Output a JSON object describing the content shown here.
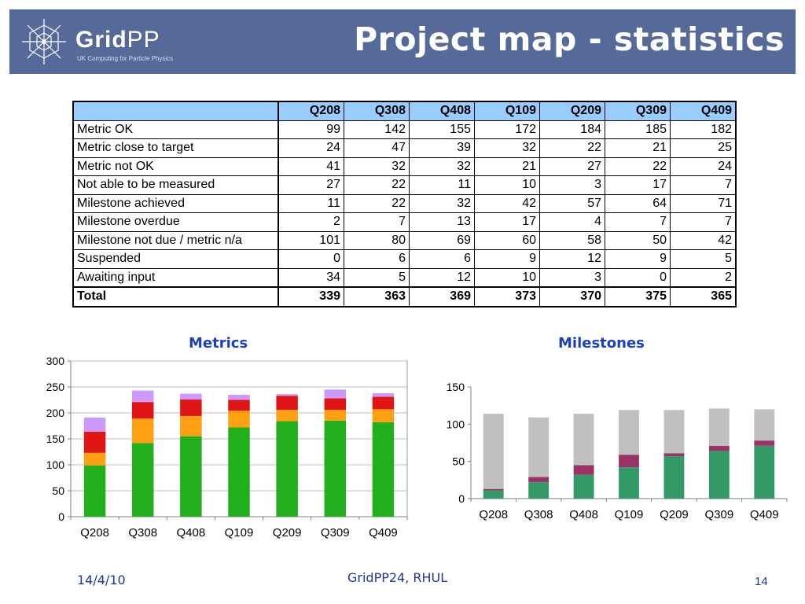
{
  "header": {
    "title": "Project map - statistics",
    "logo_name_main": "Grid",
    "logo_name_pp": "PP",
    "logo_tagline": "UK Computing for Particle Physics"
  },
  "table": {
    "columns": [
      "Q208",
      "Q308",
      "Q408",
      "Q109",
      "Q209",
      "Q309",
      "Q409"
    ],
    "rows": [
      {
        "label": "Metric OK",
        "values": [
          99,
          142,
          155,
          172,
          184,
          185,
          182
        ]
      },
      {
        "label": "Metric close to target",
        "values": [
          24,
          47,
          39,
          32,
          22,
          21,
          25
        ]
      },
      {
        "label": "Metric not OK",
        "values": [
          41,
          32,
          32,
          21,
          27,
          22,
          24
        ]
      },
      {
        "label": "Not able to be measured",
        "values": [
          27,
          22,
          11,
          10,
          3,
          17,
          7
        ]
      },
      {
        "label": "Milestone achieved",
        "values": [
          11,
          22,
          32,
          42,
          57,
          64,
          71
        ]
      },
      {
        "label": "Milestone overdue",
        "values": [
          2,
          7,
          13,
          17,
          4,
          7,
          7
        ]
      },
      {
        "label": "Milestone not due / metric n/a",
        "values": [
          101,
          80,
          69,
          60,
          58,
          50,
          42
        ]
      },
      {
        "label": "Suspended",
        "values": [
          0,
          6,
          6,
          9,
          12,
          9,
          5
        ]
      },
      {
        "label": "Awaiting input",
        "values": [
          34,
          5,
          12,
          10,
          3,
          0,
          2
        ]
      }
    ],
    "total": {
      "label": "Total",
      "values": [
        339,
        363,
        369,
        373,
        370,
        375,
        365
      ]
    }
  },
  "chart_data": [
    {
      "type": "bar",
      "stacked": true,
      "title": "Metrics",
      "categories": [
        "Q208",
        "Q308",
        "Q408",
        "Q109",
        "Q209",
        "Q309",
        "Q409"
      ],
      "ylim": [
        0,
        300
      ],
      "yticks": [
        0,
        50,
        100,
        150,
        200,
        250,
        300
      ],
      "grid": true,
      "series": [
        {
          "values": [
            99,
            142,
            155,
            172,
            184,
            185,
            182
          ],
          "color": "#22b01e"
        },
        {
          "values": [
            24,
            47,
            39,
            32,
            22,
            21,
            25
          ],
          "color": "#ff9f12"
        },
        {
          "values": [
            41,
            32,
            32,
            21,
            27,
            22,
            24
          ],
          "color": "#e01616"
        },
        {
          "values": [
            27,
            22,
            11,
            10,
            3,
            17,
            7
          ],
          "color": "#cc99ff"
        }
      ]
    },
    {
      "type": "bar",
      "stacked": true,
      "title": "Milestones",
      "categories": [
        "Q208",
        "Q308",
        "Q408",
        "Q109",
        "Q209",
        "Q309",
        "Q409"
      ],
      "ylim": [
        0,
        150
      ],
      "yticks": [
        0,
        50,
        100,
        150
      ],
      "grid": false,
      "series": [
        {
          "values": [
            11,
            22,
            32,
            42,
            57,
            64,
            71
          ],
          "color": "#339966"
        },
        {
          "values": [
            2,
            7,
            13,
            17,
            4,
            7,
            7
          ],
          "color": "#993366"
        },
        {
          "values": [
            101,
            80,
            69,
            60,
            58,
            50,
            42
          ],
          "color": "#c0c0c0"
        }
      ]
    }
  ],
  "footer": {
    "date": "14/4/10",
    "event": "GridPP24, RHUL",
    "page": "14"
  }
}
